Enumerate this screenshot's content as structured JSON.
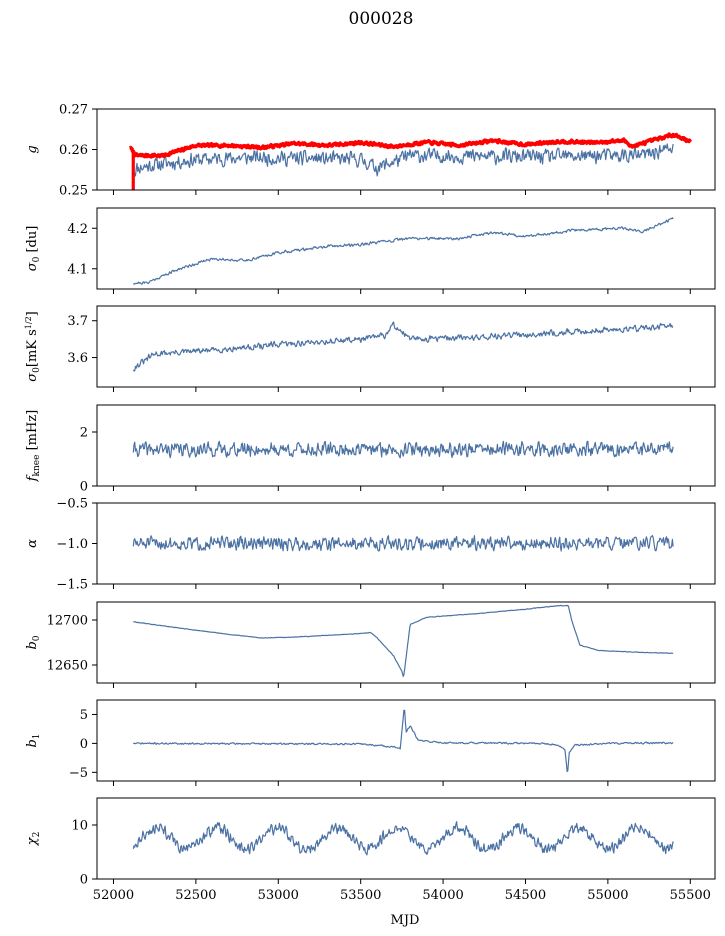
{
  "figure": {
    "title": "000028",
    "xlabel": "MJD"
  },
  "colors": {
    "series": "#4c72a4",
    "reference": "#ff0000"
  },
  "x_axis": {
    "range": [
      51900,
      55650
    ],
    "ticks": [
      52000,
      52500,
      53000,
      53500,
      54000,
      54500,
      55000,
      55500
    ]
  },
  "chart_data": [
    {
      "type": "line",
      "ylabel_parts": [
        "g",
        "",
        ""
      ],
      "ylim": [
        0.25,
        0.27
      ],
      "yticks": [
        0.25,
        0.26,
        0.27
      ],
      "ytick_labels": [
        "0.25",
        "0.26",
        "0.27"
      ],
      "series": [
        {
          "color": "#4c72a4",
          "noise": 0.0015,
          "seed": 11,
          "x_range": [
            52120,
            55400
          ],
          "points": [
            [
              52120,
              0.2545
            ],
            [
              52150,
              0.2555
            ],
            [
              52300,
              0.2565
            ],
            [
              52500,
              0.2575
            ],
            [
              52800,
              0.258
            ],
            [
              53200,
              0.2578
            ],
            [
              53500,
              0.2575
            ],
            [
              53600,
              0.2555
            ],
            [
              53800,
              0.2585
            ],
            [
              54200,
              0.2583
            ],
            [
              54600,
              0.2582
            ],
            [
              55000,
              0.2585
            ],
            [
              55200,
              0.2585
            ],
            [
              55400,
              0.2605
            ]
          ]
        },
        {
          "color": "#ff0000",
          "noise": 0.0003,
          "seed": 7,
          "thick": true,
          "x_range": [
            52100,
            55500
          ],
          "points": [
            [
              52100,
              0.2605
            ],
            [
              52140,
              0.2585
            ],
            [
              52300,
              0.2585
            ],
            [
              52500,
              0.261
            ],
            [
              52700,
              0.261
            ],
            [
              52900,
              0.2605
            ],
            [
              53100,
              0.2615
            ],
            [
              53300,
              0.261
            ],
            [
              53500,
              0.2617
            ],
            [
              53700,
              0.2607
            ],
            [
              53900,
              0.2618
            ],
            [
              54100,
              0.261
            ],
            [
              54300,
              0.2622
            ],
            [
              54500,
              0.2612
            ],
            [
              54700,
              0.262
            ],
            [
              54900,
              0.2617
            ],
            [
              55100,
              0.2622
            ],
            [
              55150,
              0.2607
            ],
            [
              55250,
              0.262
            ],
            [
              55400,
              0.2637
            ],
            [
              55500,
              0.262
            ]
          ]
        }
      ],
      "red_spike": {
        "x": 52120,
        "y_from": 0.2595,
        "y_to": 0.25
      }
    },
    {
      "type": "line",
      "ylabel_parts": [
        "σ",
        "0",
        " [du]"
      ],
      "ylim": [
        4.05,
        4.25
      ],
      "yticks": [
        4.1,
        4.2
      ],
      "ytick_labels": [
        "4.1",
        "4.2"
      ],
      "series": [
        {
          "color": "#4c72a4",
          "noise": 0.003,
          "seed": 21,
          "x_range": [
            52120,
            55400
          ],
          "points": [
            [
              52120,
              4.065
            ],
            [
              52200,
              4.065
            ],
            [
              52400,
              4.1
            ],
            [
              52600,
              4.125
            ],
            [
              52800,
              4.12
            ],
            [
              53000,
              4.14
            ],
            [
              53300,
              4.155
            ],
            [
              53500,
              4.16
            ],
            [
              53800,
              4.175
            ],
            [
              54100,
              4.175
            ],
            [
              54300,
              4.19
            ],
            [
              54500,
              4.18
            ],
            [
              54800,
              4.195
            ],
            [
              55100,
              4.2
            ],
            [
              55200,
              4.19
            ],
            [
              55400,
              4.225
            ]
          ]
        }
      ]
    },
    {
      "type": "line",
      "ylabel_parts": [
        "σ",
        "0",
        "[mK s",
        "1/2",
        "]"
      ],
      "ylim": [
        3.52,
        3.74
      ],
      "yticks": [
        3.6,
        3.7
      ],
      "ytick_labels": [
        "3.6",
        "3.7"
      ],
      "series": [
        {
          "color": "#4c72a4",
          "noise": 0.007,
          "seed": 31,
          "x_range": [
            52120,
            55400
          ],
          "points": [
            [
              52120,
              3.57
            ],
            [
              52250,
              3.61
            ],
            [
              52600,
              3.62
            ],
            [
              53000,
              3.635
            ],
            [
              53500,
              3.65
            ],
            [
              53650,
              3.66
            ],
            [
              53700,
              3.69
            ],
            [
              53800,
              3.65
            ],
            [
              54200,
              3.655
            ],
            [
              54600,
              3.665
            ],
            [
              55000,
              3.675
            ],
            [
              55400,
              3.685
            ]
          ]
        }
      ]
    },
    {
      "type": "line",
      "ylabel_parts": [
        "f",
        "knee",
        " [mHz]"
      ],
      "ylim": [
        0,
        3
      ],
      "yticks": [
        0,
        2
      ],
      "ytick_labels": [
        "0",
        "2"
      ],
      "series": [
        {
          "color": "#4c72a4",
          "noise": 0.22,
          "seed": 41,
          "x_range": [
            52120,
            55400
          ],
          "points": [
            [
              52120,
              1.35
            ],
            [
              55400,
              1.35
            ]
          ]
        }
      ]
    },
    {
      "type": "line",
      "ylabel_parts": [
        "α",
        "",
        ""
      ],
      "ylim": [
        -1.5,
        -0.5
      ],
      "yticks": [
        -1.5,
        -1.0,
        -0.5
      ],
      "ytick_labels": [
        "−1.5",
        "−1.0",
        "−0.5"
      ],
      "series": [
        {
          "color": "#4c72a4",
          "noise": 0.07,
          "seed": 51,
          "x_range": [
            52120,
            55400
          ],
          "points": [
            [
              52120,
              -1.0
            ],
            [
              55400,
              -1.0
            ]
          ]
        }
      ]
    },
    {
      "type": "line",
      "ylabel_parts": [
        "b",
        "0",
        ""
      ],
      "ylim": [
        12630,
        12720
      ],
      "yticks": [
        12650,
        12700
      ],
      "ytick_labels": [
        "12650",
        "12700"
      ],
      "series": [
        {
          "color": "#4c72a4",
          "noise": 0.25,
          "seed": 61,
          "x_range": [
            52120,
            55400
          ],
          "points": [
            [
              52120,
              12698
            ],
            [
              52400,
              12691
            ],
            [
              52700,
              12684
            ],
            [
              52900,
              12680
            ],
            [
              53100,
              12681
            ],
            [
              53300,
              12683
            ],
            [
              53500,
              12685
            ],
            [
              53560,
              12686
            ],
            [
              53600,
              12680
            ],
            [
              53700,
              12660
            ],
            [
              53750,
              12643
            ],
            [
              53760,
              12636
            ],
            [
              53770,
              12650
            ],
            [
              53800,
              12695
            ],
            [
              53900,
              12703
            ],
            [
              54200,
              12707
            ],
            [
              54500,
              12712
            ],
            [
              54700,
              12716
            ],
            [
              54760,
              12716
            ],
            [
              54780,
              12700
            ],
            [
              54830,
              12672
            ],
            [
              54950,
              12666
            ],
            [
              55200,
              12664
            ],
            [
              55400,
              12663
            ]
          ]
        }
      ]
    },
    {
      "type": "line",
      "ylabel_parts": [
        "b",
        "1",
        ""
      ],
      "ylim": [
        -6.5,
        7.5
      ],
      "yticks": [
        -5,
        0,
        5
      ],
      "ytick_labels": [
        "−5",
        "0",
        "5"
      ],
      "series": [
        {
          "color": "#4c72a4",
          "noise": 0.12,
          "seed": 71,
          "x_range": [
            52120,
            55400
          ],
          "points": [
            [
              52120,
              0
            ],
            [
              53500,
              -0.1
            ],
            [
              53700,
              -0.6
            ],
            [
              53740,
              -0.9
            ],
            [
              53755,
              3.5
            ],
            [
              53765,
              6.5
            ],
            [
              53775,
              2.0
            ],
            [
              53800,
              3.0
            ],
            [
              53850,
              0.5
            ],
            [
              54000,
              0.1
            ],
            [
              54600,
              0
            ],
            [
              54700,
              -0.3
            ],
            [
              54740,
              -1.2
            ],
            [
              54755,
              -5.5
            ],
            [
              54765,
              -1.5
            ],
            [
              54800,
              -0.3
            ],
            [
              55000,
              0
            ],
            [
              55400,
              0.1
            ]
          ]
        }
      ]
    },
    {
      "type": "line",
      "ylabel_parts": [
        "χ",
        "2",
        ""
      ],
      "ylim": [
        0,
        15
      ],
      "yticks": [
        0,
        10
      ],
      "ytick_labels": [
        "0",
        "10"
      ],
      "series": [
        {
          "color": "#4c72a4",
          "noise": 0.9,
          "seed": 81,
          "x_range": [
            52120,
            55400
          ],
          "periodic": {
            "mean": 7.5,
            "amplitude": 2.0,
            "period": 365.25,
            "phase": 52170
          },
          "points": []
        }
      ]
    }
  ]
}
